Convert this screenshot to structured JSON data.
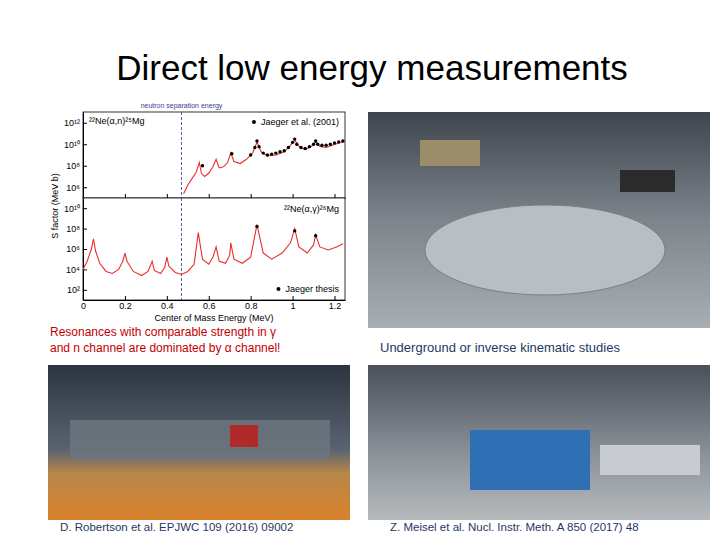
{
  "title": "Direct low energy measurements",
  "chart_data": [
    {
      "type": "line",
      "log": "y",
      "tick_labels": "y",
      "legend": "upper right",
      "ylabel": "S factor (MeV b)",
      "xlim": [
        0,
        1.25
      ],
      "xticks": [
        0,
        0.2,
        0.4,
        0.6,
        0.8,
        1,
        1.2
      ],
      "ylim": [
        100000.0,
        10000000000000.0
      ],
      "yticks": [
        {
          "value": 1000000.0,
          "label": "10⁶"
        },
        {
          "value": 100000000.0,
          "label": "10⁸"
        },
        {
          "value": 10000000000.0,
          "label": "10¹⁰"
        },
        {
          "value": 1000000000000.0,
          "label": "10¹²"
        }
      ],
      "vlines": [
        {
          "x": 0.47,
          "label": "neutron separation energy"
        }
      ],
      "annotations": [
        {
          "text": "²²Ne(α,n)²⁵Mg"
        }
      ],
      "series": [
        {
          "type": "line",
          "color": "#e8302a",
          "line_style": "solid",
          "x": [
            0.48,
            0.5,
            0.52,
            0.54,
            0.555,
            0.565,
            0.58,
            0.6,
            0.62,
            0.635,
            0.65,
            0.67,
            0.69,
            0.705,
            0.72,
            0.75,
            0.78,
            0.81,
            0.83,
            0.85,
            0.88,
            0.92,
            0.96,
            0.99,
            1.01,
            1.03,
            1.06,
            1.09,
            1.11,
            1.13,
            1.16,
            1.19,
            1.22,
            1.24
          ],
          "values": [
            250000.0,
            1600000.0,
            6300000.0,
            25000000.0,
            200000000.0,
            20000000.0,
            10000000.0,
            20000000.0,
            80000000.0,
            400000000.0,
            63000000.0,
            80000000.0,
            200000000.0,
            1600000000.0,
            250000000.0,
            160000000.0,
            400000000.0,
            1600000000.0,
            16000000000.0,
            2000000000.0,
            800000000.0,
            1000000000.0,
            2000000000.0,
            8000000000.0,
            25000000000.0,
            6300000000.0,
            3200000000.0,
            6300000000.0,
            16000000000.0,
            6300000000.0,
            5000000000.0,
            8000000000.0,
            13000000000.0,
            16000000000.0
          ]
        },
        {
          "type": "scatter",
          "name": "Jaeger et al. (2001)",
          "color": "#000000",
          "marker": "circle",
          "x": [
            0.57,
            0.71,
            0.8,
            0.82,
            0.83,
            0.84,
            0.86,
            0.88,
            0.9,
            0.92,
            0.94,
            0.96,
            0.98,
            1,
            1.01,
            1.02,
            1.04,
            1.06,
            1.08,
            1.1,
            1.11,
            1.12,
            1.14,
            1.16,
            1.18,
            1.2,
            1.22,
            1.24
          ],
          "values": [
            100000000.0,
            1300000000.0,
            1000000000.0,
            5000000000.0,
            20000000000.0,
            6000000000.0,
            1500000000.0,
            1000000000.0,
            1200000000.0,
            1500000000.0,
            2000000000.0,
            2500000000.0,
            5000000000.0,
            15000000000.0,
            30000000000.0,
            10000000000.0,
            5000000000.0,
            4000000000.0,
            6000000000.0,
            10000000000.0,
            20000000000.0,
            10000000000.0,
            8000000000.0,
            8000000000.0,
            10000000000.0,
            13000000000.0,
            16000000000.0,
            20000000000.0
          ]
        }
      ]
    },
    {
      "type": "line",
      "log": "y",
      "legend": "lower right",
      "xlabel": "Center of Mass Energy (MeV)",
      "xlim": [
        0,
        1.25
      ],
      "xticks": [
        0,
        0.2,
        0.4,
        0.6,
        0.8,
        1,
        1.2
      ],
      "ylim": [
        10.0,
        100000000000.0
      ],
      "yticks": [
        {
          "value": 100.0,
          "label": "10²"
        },
        {
          "value": 10000.0,
          "label": "10⁴"
        },
        {
          "value": 1000000.0,
          "label": "10⁶"
        },
        {
          "value": 100000000.0,
          "label": "10⁸"
        },
        {
          "value": 10000000000.0,
          "label": "10¹⁰"
        }
      ],
      "vlines": [
        {
          "x": 0.47
        }
      ],
      "annotations": [
        {
          "text": "²²Ne(α,γ)²⁶Mg"
        }
      ],
      "series": [
        {
          "type": "line",
          "color": "#e8302a",
          "line_style": "solid",
          "x": [
            0,
            0.02,
            0.04,
            0.05,
            0.06,
            0.08,
            0.11,
            0.14,
            0.17,
            0.19,
            0.2,
            0.21,
            0.24,
            0.28,
            0.31,
            0.33,
            0.34,
            0.37,
            0.39,
            0.4,
            0.41,
            0.44,
            0.47,
            0.5,
            0.53,
            0.55,
            0.57,
            0.6,
            0.62,
            0.635,
            0.65,
            0.68,
            0.7,
            0.705,
            0.72,
            0.76,
            0.8,
            0.83,
            0.86,
            0.9,
            0.95,
            0.99,
            1.01,
            1.03,
            1.07,
            1.1,
            1.11,
            1.13,
            1.17,
            1.21,
            1.24
          ],
          "values": [
            10000.0,
            63000.0,
            1000000.0,
            10000000.0,
            630000.0,
            40000.0,
            6300.0,
            4000.0,
            10000.0,
            63000.0,
            400000.0,
            63000.0,
            6300.0,
            2500.0,
            6300.0,
            63000.0,
            8000.0,
            4000.0,
            16000.0,
            160000.0,
            20000.0,
            5000.0,
            3200.0,
            6300.0,
            32000.0,
            40000000.0,
            100000.0,
            32000.0,
            160000.0,
            1600000.0,
            63000.0,
            40000.0,
            250000.0,
            4000000.0,
            100000.0,
            40000.0,
            160000.0,
            250000000.0,
            400000.0,
            100000.0,
            400000.0,
            4000000.0,
            100000000.0,
            1600000.0,
            400000.0,
            2500000.0,
            25000000.0,
            1600000.0,
            800000.0,
            1600000.0,
            3200000.0
          ]
        },
        {
          "type": "scatter",
          "name": "Jaeger thesis",
          "color": "#000000",
          "marker": "circle",
          "x": [
            0.83,
            1.01,
            1.11
          ],
          "values": [
            160000000.0,
            60000000.0,
            20000000.0
          ]
        }
      ]
    }
  ],
  "captions": [
    {
      "lines": [
        "Resonances with comparable strength in γ",
        "and n channel are dominated by α channel!"
      ],
      "color": "#c00000"
    },
    {
      "lines": [
        "Underground or inverse kinematic studies"
      ],
      "color": "#1f3864"
    },
    {
      "lines": [
        "D. Robertson et al. EPJWC 109 (2016) 09002"
      ],
      "color": "#1f3864"
    },
    {
      "lines": [
        "Z. Meisel et al. Nucl. Instr. Meth. A 850 (2017) 48"
      ],
      "color": "#1f3864"
    }
  ]
}
